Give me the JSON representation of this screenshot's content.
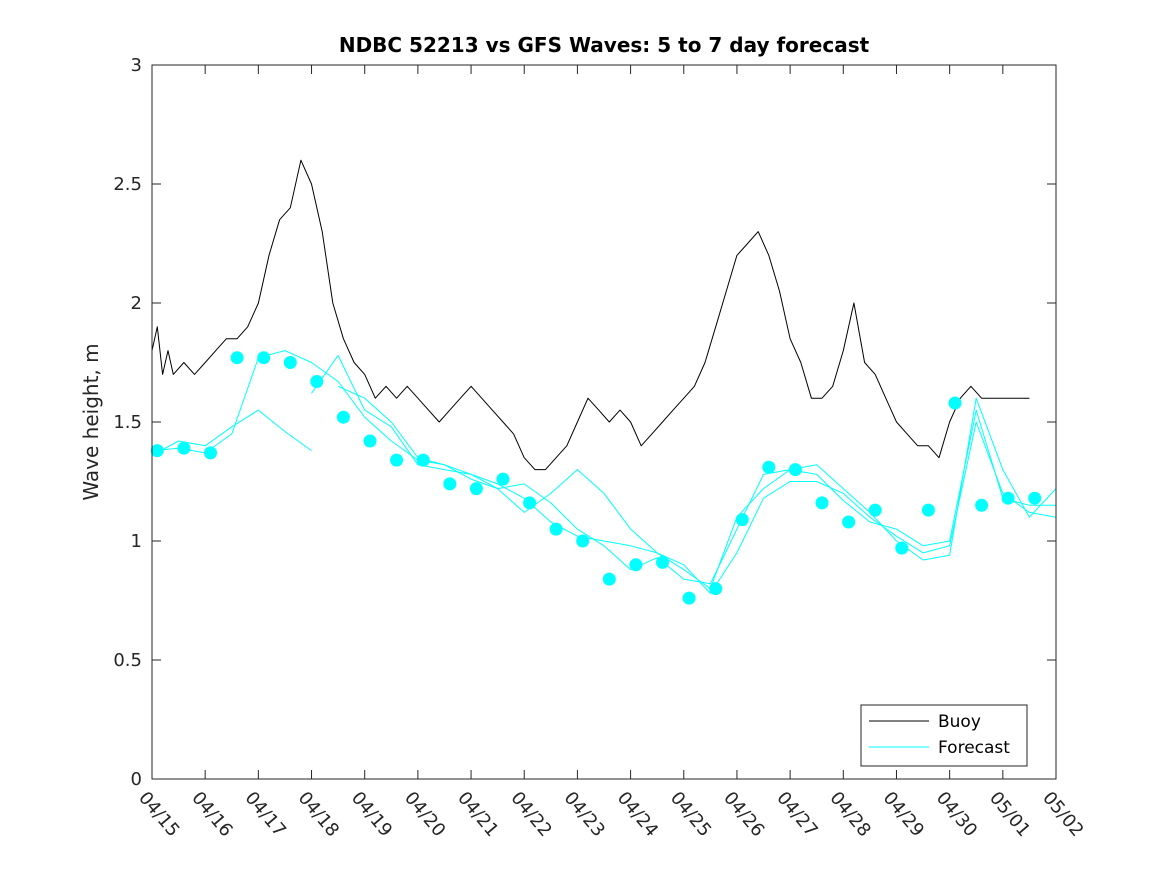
{
  "chart_data": {
    "type": "line",
    "title": "NDBC 52213 vs GFS Waves: 5 to 7 day forecast",
    "xlabel": "",
    "ylabel": "Wave height, m",
    "ylim": [
      0,
      3
    ],
    "xlim": [
      0,
      17
    ],
    "yticks": [
      "0",
      "0.5",
      "1",
      "1.5",
      "2",
      "2.5",
      "3"
    ],
    "xticks": [
      "04/15",
      "04/16",
      "04/17",
      "04/18",
      "04/19",
      "04/20",
      "04/21",
      "04/22",
      "04/23",
      "04/24",
      "04/25",
      "04/26",
      "04/27",
      "04/28",
      "04/29",
      "04/30",
      "05/01",
      "05/02"
    ],
    "grid": false,
    "legend_position": "bottom-right",
    "colors": {
      "buoy": "#000000",
      "forecast": "#00ffff"
    },
    "series": [
      {
        "name": "Buoy",
        "style": "line",
        "x": [
          0.0,
          0.1,
          0.2,
          0.3,
          0.4,
          0.6,
          0.8,
          1.0,
          1.2,
          1.4,
          1.6,
          1.8,
          2.0,
          2.2,
          2.4,
          2.6,
          2.8,
          3.0,
          3.2,
          3.4,
          3.6,
          3.8,
          4.0,
          4.2,
          4.4,
          4.6,
          4.8,
          5.0,
          5.2,
          5.4,
          5.6,
          5.8,
          6.0,
          6.2,
          6.4,
          6.6,
          6.8,
          7.0,
          7.2,
          7.4,
          7.6,
          7.8,
          8.0,
          8.2,
          8.4,
          8.6,
          8.8,
          9.0,
          9.2,
          9.4,
          9.6,
          9.8,
          10.0,
          10.2,
          10.4,
          10.6,
          10.8,
          11.0,
          11.2,
          11.4,
          11.6,
          11.8,
          12.0,
          12.2,
          12.4,
          12.6,
          12.8,
          13.0,
          13.2,
          13.4,
          13.6,
          13.8,
          14.0,
          14.2,
          14.4,
          14.6,
          14.8,
          15.0,
          15.2,
          15.4,
          15.6,
          15.8,
          16.0,
          16.2,
          16.4,
          16.5
        ],
        "y": [
          1.8,
          1.9,
          1.7,
          1.8,
          1.7,
          1.75,
          1.7,
          1.75,
          1.8,
          1.85,
          1.85,
          1.9,
          2.0,
          2.2,
          2.35,
          2.4,
          2.6,
          2.5,
          2.3,
          2.0,
          1.85,
          1.75,
          1.7,
          1.6,
          1.65,
          1.6,
          1.65,
          1.6,
          1.55,
          1.5,
          1.55,
          1.6,
          1.65,
          1.6,
          1.55,
          1.5,
          1.45,
          1.35,
          1.3,
          1.3,
          1.35,
          1.4,
          1.5,
          1.6,
          1.55,
          1.5,
          1.55,
          1.5,
          1.4,
          1.45,
          1.5,
          1.55,
          1.6,
          1.65,
          1.75,
          1.9,
          2.05,
          2.2,
          2.25,
          2.3,
          2.2,
          2.05,
          1.85,
          1.75,
          1.6,
          1.6,
          1.65,
          1.8,
          2.0,
          1.75,
          1.7,
          1.6,
          1.5,
          1.45,
          1.4,
          1.4,
          1.35,
          1.5,
          1.6,
          1.65,
          1.6,
          1.6,
          1.6,
          1.6,
          1.6,
          1.6
        ]
      },
      {
        "name": "Forecast",
        "style": "line",
        "x": [
          0.0,
          0.5,
          1.0,
          1.5,
          2.0,
          2.5,
          3.0,
          3.5,
          4.0,
          4.5,
          5.0,
          5.5,
          6.0,
          6.5,
          7.0,
          7.5,
          8.0,
          8.5,
          9.0,
          9.5,
          10.0,
          10.5,
          11.0,
          11.5,
          12.0,
          12.5,
          13.0,
          13.5,
          14.0,
          14.5,
          15.0,
          15.5,
          16.0,
          16.5,
          17.0
        ],
        "y": [
          1.38,
          1.39,
          1.37,
          1.45,
          1.77,
          1.8,
          1.75,
          1.67,
          1.52,
          1.42,
          1.34,
          1.32,
          1.26,
          1.22,
          1.24,
          1.16,
          1.05,
          0.98,
          0.88,
          0.93,
          0.84,
          0.82,
          1.05,
          1.28,
          1.3,
          1.28,
          1.17,
          1.08,
          1.05,
          0.98,
          1.0,
          1.55,
          1.18,
          1.15,
          1.15
        ]
      },
      {
        "name": "",
        "style": "line",
        "x": [
          0.0,
          0.5,
          1.0,
          1.5,
          2.0,
          2.5,
          3.0
        ],
        "y": [
          1.36,
          1.42,
          1.4,
          1.48,
          1.55,
          1.46,
          1.38
        ]
      },
      {
        "name": "",
        "style": "line",
        "x": [
          3.0,
          3.5,
          4.0,
          4.5,
          5.0,
          5.5,
          6.0,
          6.5,
          7.0,
          7.5,
          8.0,
          8.5,
          9.0,
          9.5,
          10.0,
          10.5,
          11.0,
          11.5,
          12.0,
          12.5,
          13.0,
          13.5,
          14.0,
          14.5,
          15.0,
          15.5,
          16.0,
          16.5,
          17.0
        ],
        "y": [
          1.62,
          1.78,
          1.55,
          1.48,
          1.32,
          1.3,
          1.28,
          1.24,
          1.18,
          1.08,
          1.02,
          1.0,
          0.98,
          0.95,
          0.9,
          0.78,
          0.95,
          1.18,
          1.25,
          1.25,
          1.2,
          1.1,
          1.02,
          0.95,
          0.98,
          1.5,
          1.2,
          1.12,
          1.1
        ]
      },
      {
        "name": "",
        "style": "line",
        "x": [
          3.5,
          4.0,
          4.5,
          5.0,
          5.5,
          6.0,
          6.5,
          7.0,
          7.5,
          8.0,
          8.5,
          9.0,
          9.5,
          10.0,
          10.5,
          11.0,
          11.5,
          12.0,
          12.5,
          13.0,
          13.5,
          14.0,
          14.5,
          15.0,
          15.5,
          16.0,
          16.5,
          17.0
        ],
        "y": [
          1.65,
          1.6,
          1.5,
          1.35,
          1.32,
          1.28,
          1.22,
          1.12,
          1.2,
          1.3,
          1.2,
          1.05,
          0.95,
          0.88,
          0.8,
          1.1,
          1.22,
          1.3,
          1.32,
          1.22,
          1.12,
          1.0,
          0.92,
          0.94,
          1.6,
          1.3,
          1.1,
          1.22
        ]
      },
      {
        "name": "",
        "style": "markers",
        "x": [
          0.1,
          0.6,
          1.1,
          1.6,
          2.1,
          2.6,
          3.1,
          3.6,
          4.1,
          4.6,
          5.1,
          5.6,
          6.1,
          6.6,
          7.1,
          7.6,
          8.1,
          8.6,
          9.1,
          9.6,
          10.1,
          10.6,
          11.1,
          11.6,
          12.1,
          12.6,
          13.1,
          13.6,
          14.1,
          14.6,
          15.1,
          15.6,
          16.1,
          16.6
        ],
        "y": [
          1.38,
          1.39,
          1.37,
          1.77,
          1.77,
          1.75,
          1.67,
          1.52,
          1.42,
          1.34,
          1.34,
          1.24,
          1.22,
          1.26,
          1.16,
          1.05,
          1.0,
          0.84,
          0.9,
          0.91,
          0.76,
          0.8,
          1.09,
          1.31,
          1.3,
          1.16,
          1.08,
          1.13,
          0.97,
          1.13,
          1.58,
          1.15,
          1.18,
          1.18
        ]
      }
    ]
  }
}
